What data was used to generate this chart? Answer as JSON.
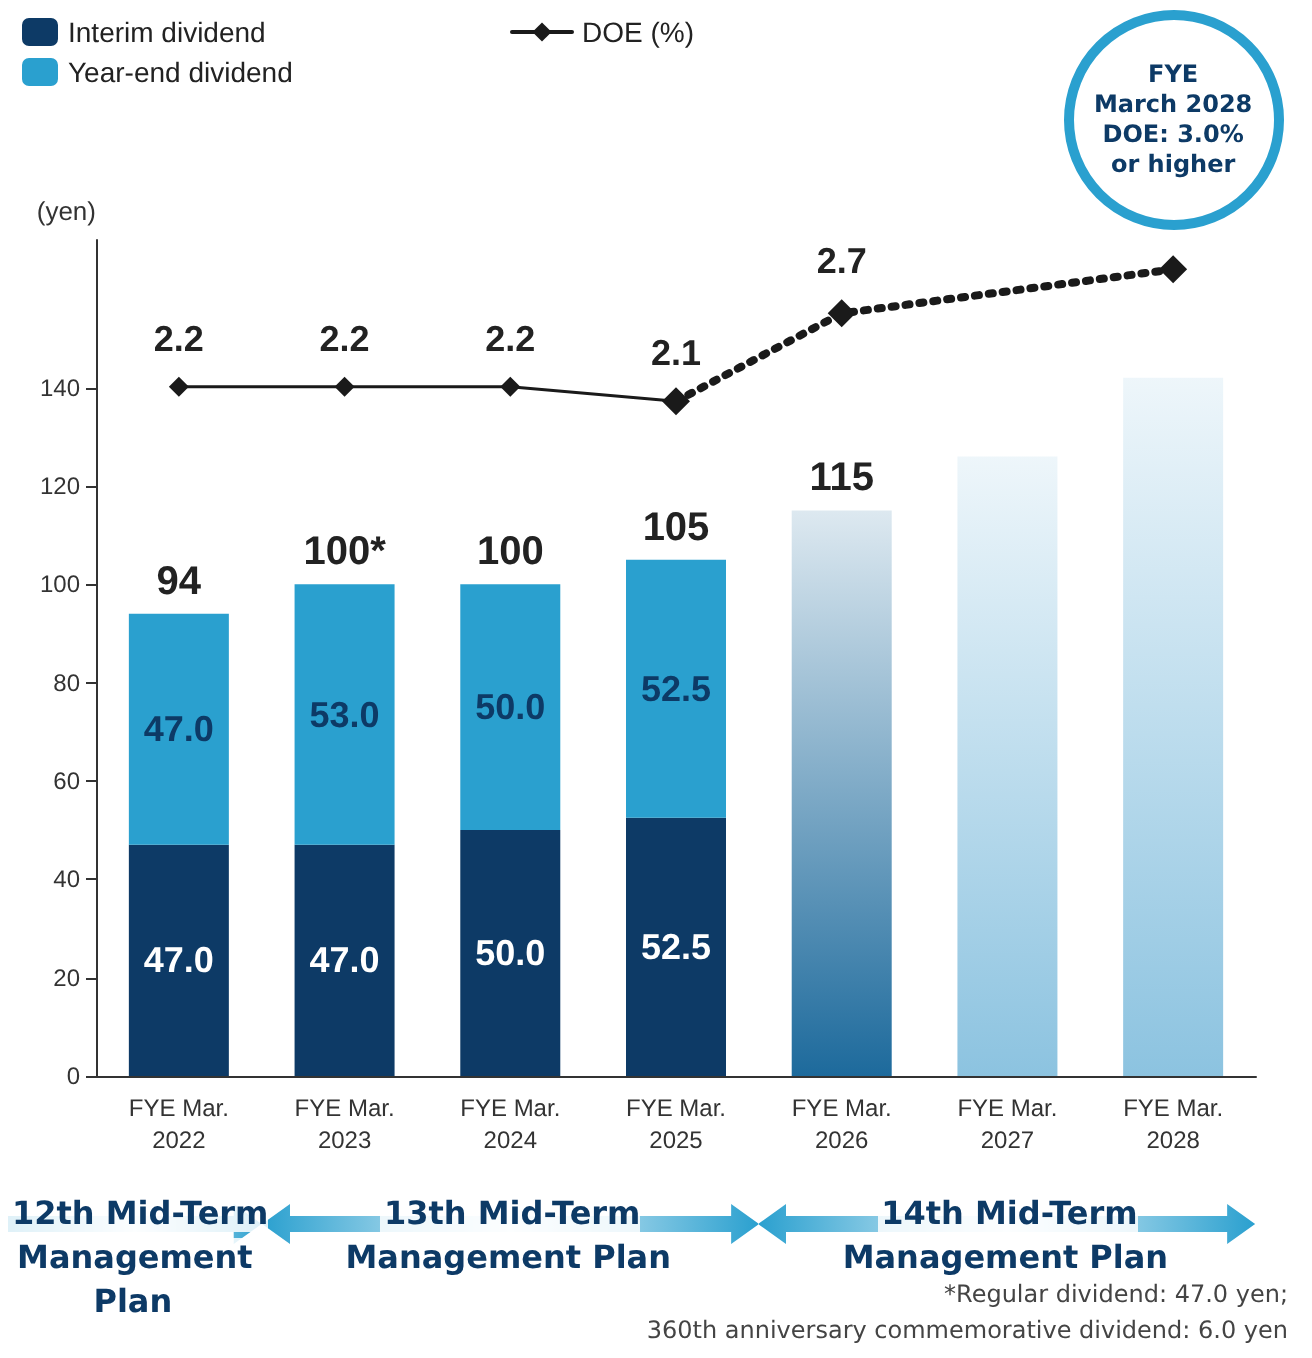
{
  "chart_data": {
    "type": "bar",
    "stacked": true,
    "ylabel": "(yen)",
    "categories": [
      "FYE Mar.\n2022",
      "FYE Mar.\n2023",
      "FYE Mar.\n2024",
      "FYE Mar.\n2025",
      "FYE Mar.\n2026",
      "FYE Mar.\n2027",
      "FYE Mar.\n2028"
    ],
    "series": [
      {
        "name": "Interim dividend",
        "color": "#0d3a66",
        "values": [
          47.0,
          47.0,
          50.0,
          52.5,
          null,
          null,
          null
        ],
        "value_labels": [
          "47.0",
          "47.0",
          "50.0",
          "52.5",
          null,
          null,
          null
        ]
      },
      {
        "name": "Year-end dividend",
        "color": "#2aa0cf",
        "values": [
          47.0,
          53.0,
          50.0,
          52.5,
          null,
          null,
          null
        ],
        "value_labels": [
          "47.0",
          "53.0",
          "50.0",
          "52.5",
          null,
          null,
          null
        ]
      },
      {
        "colors": [
          null,
          null,
          null,
          null,
          "#1d6a9c",
          "#8cc3e0",
          "#8cc3e0"
        ],
        "values": [
          null,
          null,
          null,
          null,
          115,
          126,
          142
        ]
      },
      {
        "name": "DOE (%)",
        "type": "line",
        "axis": "y2",
        "color": "#1a1a1a",
        "marker": "diamond",
        "line_style": "solid",
        "values": [
          2.2,
          2.2,
          2.2,
          2.1,
          null,
          null,
          null
        ],
        "value_labels": [
          "2.2",
          "2.2",
          "2.2",
          "2.1",
          null,
          null,
          null
        ]
      },
      {
        "type": "line",
        "axis": "y2",
        "color": "#1a1a1a",
        "marker": "diamond",
        "line_style": "dotted",
        "values": [
          null,
          null,
          null,
          2.1,
          2.7,
          null,
          3.0
        ],
        "value_labels": [
          null,
          null,
          null,
          null,
          "2.7",
          null,
          null
        ]
      }
    ],
    "totals": [
      "94",
      "100*",
      "100",
      "105",
      "115",
      null,
      null
    ],
    "ylim": [
      0,
      170
    ],
    "yticks": [
      0,
      20,
      40,
      60,
      80,
      100,
      120,
      140
    ],
    "y2lim": [
      -2.5,
      3.2
    ],
    "legend": "top left",
    "annotations": [
      "FYE\nMarch 2028\nDOE: 3.0%\nor higher",
      "12th Mid-Term\nManagement\nPlan",
      "13th Mid-Term\nManagement Plan",
      "14th Mid-Term\nManagement Plan",
      "*Regular dividend: 47.0 yen;\n360th anniversary commemorative dividend: 6.0 yen"
    ]
  }
}
